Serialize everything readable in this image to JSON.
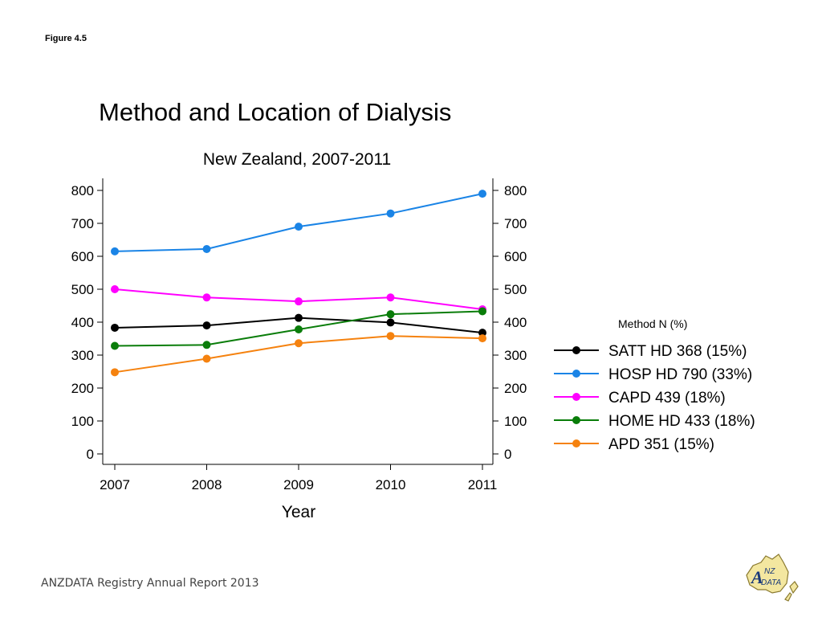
{
  "figure_label": "Figure 4.5",
  "footer": "ANZDATA Registry Annual Report 2013",
  "logo_text": "ANZDATA",
  "chart_data": {
    "type": "line",
    "title": "Method and Location of Dialysis",
    "subtitle": "New Zealand, 2007-2011",
    "xlabel": "Year",
    "ylabel": "",
    "x": [
      2007,
      2008,
      2009,
      2010,
      2011
    ],
    "ylim": [
      0,
      800
    ],
    "yticks": [
      0,
      100,
      200,
      300,
      400,
      500,
      600,
      700,
      800
    ],
    "grid": false,
    "legend_title": "Method N (%)",
    "legend_position": "right",
    "series": [
      {
        "name": "SATT HD 368 (15%)",
        "color": "#000000",
        "values": [
          383,
          390,
          413,
          399,
          368
        ]
      },
      {
        "name": "HOSP HD 790 (33%)",
        "color": "#1a84e6",
        "values": [
          615,
          622,
          690,
          730,
          790
        ]
      },
      {
        "name": "CAPD 439 (18%)",
        "color": "#ff00ff",
        "values": [
          500,
          475,
          463,
          475,
          439
        ]
      },
      {
        "name": "HOME HD 433 (18%)",
        "color": "#0a7d0a",
        "values": [
          328,
          331,
          378,
          424,
          433
        ]
      },
      {
        "name": "APD 351 (15%)",
        "color": "#f5820f",
        "values": [
          248,
          289,
          336,
          358,
          351
        ]
      }
    ]
  }
}
